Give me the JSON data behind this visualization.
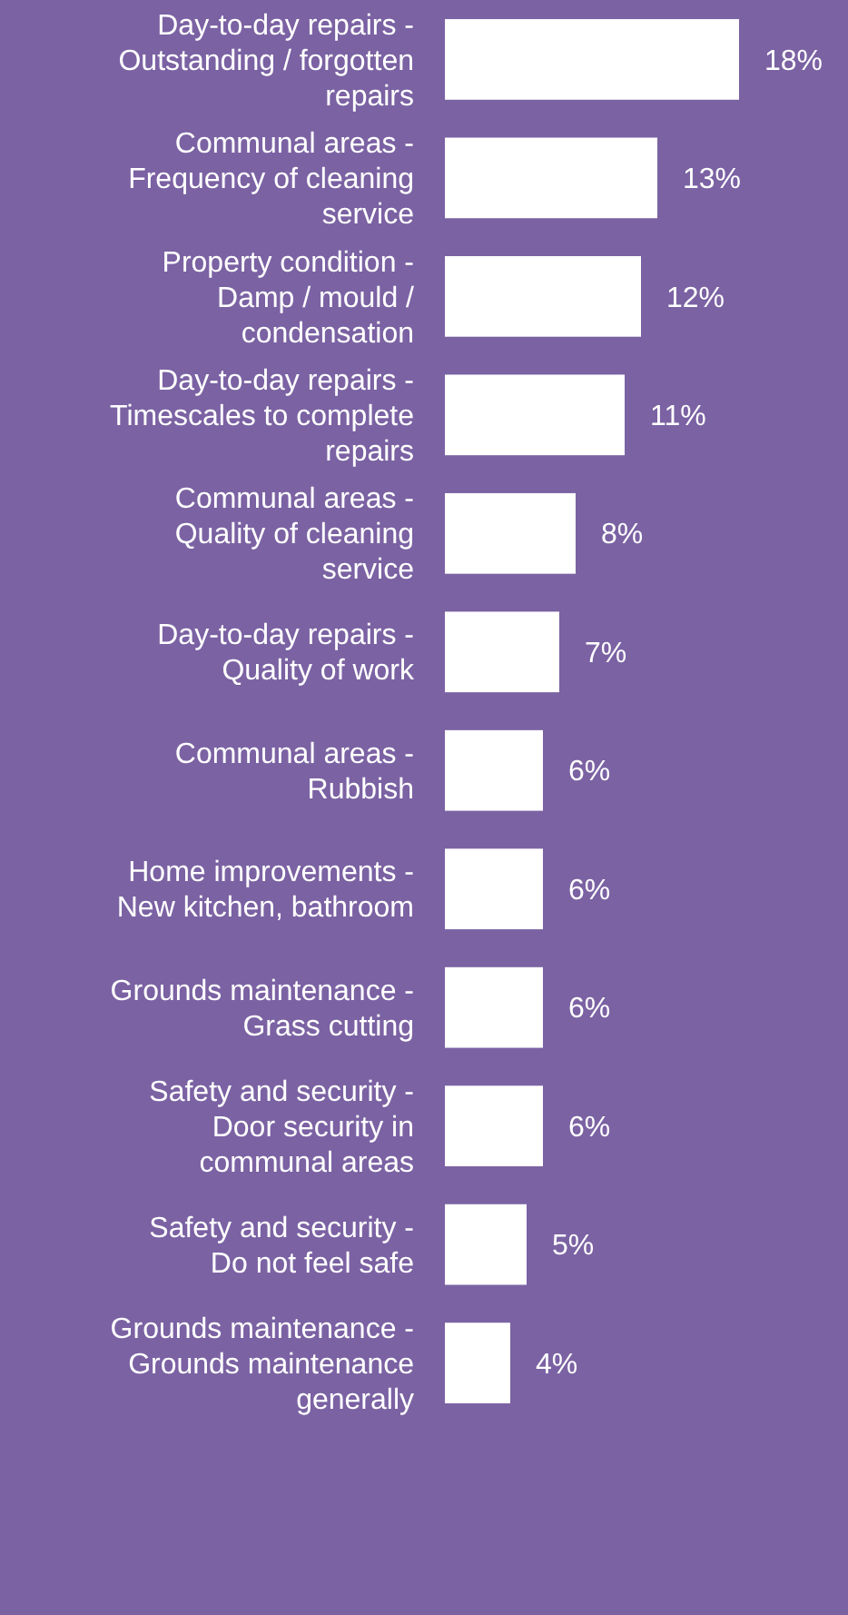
{
  "chart_data": {
    "type": "bar",
    "orientation": "horizontal",
    "data_labels": true,
    "tick_labels": false,
    "xlim": [
      0,
      18
    ],
    "categories": [
      "Day-to-day repairs - Outstanding / forgotten repairs",
      "Communal areas - Frequency of cleaning service",
      "Property condition - Damp / mould / condensation",
      "Day-to-day repairs - Timescales to complete repairs",
      "Communal areas - Quality of cleaning service",
      "Day-to-day repairs - Quality of work",
      "Communal areas - Rubbish",
      "Home improvements - New kitchen, bathroom",
      "Grounds maintenance - Grass cutting",
      "Safety and security - Door security in communal areas",
      "Safety and security - Do not feel safe",
      "Grounds maintenance - Grounds maintenance generally"
    ],
    "value_labels": [
      "18%",
      "13%",
      "12%",
      "11%",
      "8%",
      "7%",
      "6%",
      "6%",
      "6%",
      "6%",
      "5%",
      "4%"
    ],
    "values": [
      18,
      13,
      12,
      11,
      8,
      7,
      6,
      6,
      6,
      6,
      5,
      4
    ],
    "color": "#ffffff"
  }
}
